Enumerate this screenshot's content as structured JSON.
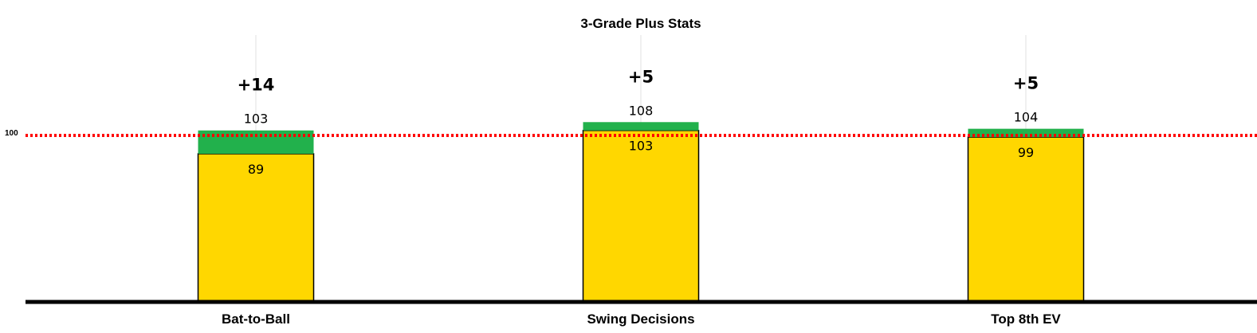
{
  "chart_data": {
    "type": "bar",
    "title": "3-Grade Plus Stats",
    "categories": [
      "Bat-to-Ball",
      "Swing Decisions",
      "Top 8th EV"
    ],
    "series": [
      {
        "values": [
          89,
          103,
          99
        ]
      },
      {
        "values": [
          103,
          108,
          104
        ]
      }
    ],
    "differences": [
      "+14",
      "+5",
      "+5"
    ],
    "reference_line": {
      "value": 100,
      "label": "100",
      "color": "#ff0000",
      "style": "dotted"
    },
    "ylim": [
      0,
      160
    ],
    "grid": "vertical lines at categories",
    "colors": {
      "base": "#ffd700",
      "increase": "#22b14c",
      "bar_outline": "#000000",
      "axis": "#000000",
      "grid": "#e0e0e0"
    }
  }
}
